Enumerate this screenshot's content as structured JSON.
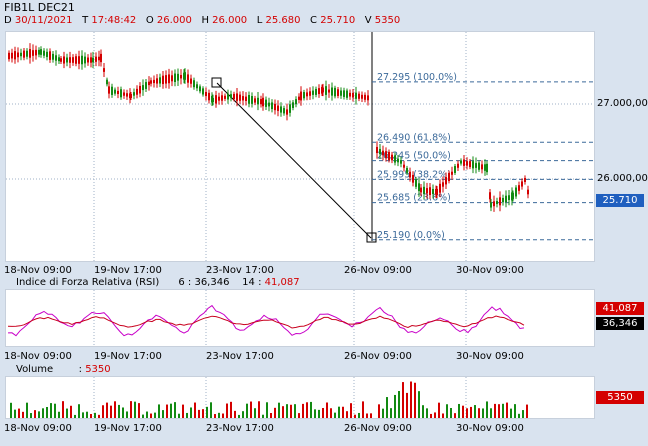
{
  "header": {
    "symbol": "FIB1L DEC21",
    "date": {
      "k": "D",
      "v": "30/11/2021"
    },
    "time": {
      "k": "T",
      "v": "17:48:42"
    },
    "open": {
      "k": "O",
      "v": "26.000"
    },
    "high": {
      "k": "H",
      "v": "26.000"
    },
    "low": {
      "k": "L",
      "v": "25.680"
    },
    "close": {
      "k": "C",
      "v": "25.710"
    },
    "volume": {
      "k": "V",
      "v": "5350"
    }
  },
  "price_panel": {
    "y_ticks": [
      "27.000,00",
      "26.000,00"
    ],
    "last_price_tag": "25.710",
    "fib_levels": [
      {
        "label": "27.295 (100.0%)",
        "value": 27.295
      },
      {
        "label": "26.490 (61.8%)",
        "value": 26.49
      },
      {
        "label": "26.245 (50.0%)",
        "value": 26.245
      },
      {
        "label": "25.995 (38.2%)",
        "value": 25.995
      },
      {
        "label": "25.685 (23.6%)",
        "value": 25.685
      },
      {
        "label": "25.190 (0.0%)",
        "value": 25.19
      }
    ]
  },
  "x_labels": [
    "18-Nov 09:00",
    "19-Nov 17:00",
    "23-Nov 17:00",
    "26-Nov 09:00",
    "30-Nov 09:00"
  ],
  "rsi_panel": {
    "title": "Indice di Forza Relativa (RSI)",
    "p1": "6",
    "v1": "36,346",
    "p2": "14",
    "v2": "41,087",
    "tag_red": "41,087",
    "tag_black": "36,346"
  },
  "volume_panel": {
    "title": "Volume",
    "value": "5350",
    "tag": "5350"
  },
  "colors": {
    "up": "#128a12",
    "down": "#d40000",
    "panel_bg": "#ffffff",
    "app_bg": "#d9e3ef",
    "grid": "#4a6b8c",
    "rsi6": "#000000",
    "rsi14": "#c8001e"
  }
}
